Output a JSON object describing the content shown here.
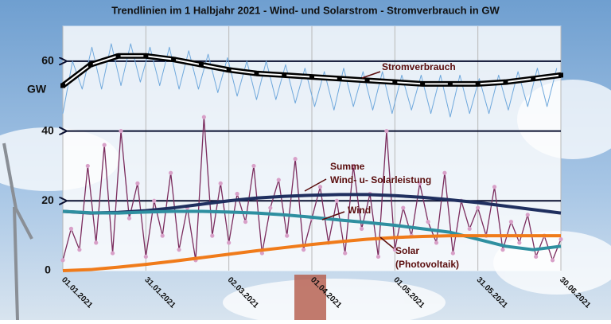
{
  "chart_data": {
    "type": "line",
    "title": "Trendlinien im 1 Halbjahr 2021 - Wind- und Solarstrom - Stromverbrauch in GW",
    "y_label": "GW",
    "xlim": [
      0,
      180
    ],
    "xticks": [
      {
        "value": 0,
        "label": "01.01.2021"
      },
      {
        "value": 30,
        "label": "31.01.2021"
      },
      {
        "value": 60,
        "label": "02.03.2021"
      },
      {
        "value": 90,
        "label": "01.04.2021"
      },
      {
        "value": 120,
        "label": "01.05.2021"
      },
      {
        "value": 150,
        "label": "31.05.2021"
      },
      {
        "value": 180,
        "label": "30.06.2021"
      }
    ],
    "ylim": [
      0,
      70
    ],
    "yticks": [
      0,
      20,
      40,
      60
    ],
    "grid": true,
    "annotations": [
      "Stromverbrauch",
      "Summe",
      "Wind- u- Solarleistung",
      "Wind",
      "Solar",
      "(Photovoltaik)"
    ],
    "series": [
      {
        "color": "#6fa8dc",
        "width": 1,
        "x": [
          0,
          3.5,
          7,
          10.5,
          14,
          17.5,
          21,
          24.5,
          28,
          31.5,
          35,
          38.5,
          42,
          45.5,
          49,
          52.5,
          56,
          59.5,
          63,
          66.5,
          70,
          73.5,
          77,
          80.5,
          84,
          87.5,
          91,
          94.5,
          98,
          101.5,
          105,
          108.5,
          112,
          115.5,
          119,
          122.5,
          126,
          129.5,
          133,
          136.5,
          140,
          143.5,
          147,
          150.5,
          154,
          157.5,
          161,
          164.5,
          168,
          171.5,
          175,
          178.5
        ],
        "values": [
          45,
          60,
          52,
          64,
          52,
          65,
          53,
          65,
          54,
          64,
          53,
          64,
          52,
          63,
          52,
          62,
          51,
          61,
          50,
          60,
          49,
          60,
          49,
          59,
          48,
          58,
          47,
          57,
          46,
          58,
          47,
          57,
          46,
          57,
          45,
          56,
          46,
          56,
          45,
          56,
          44,
          56,
          45,
          55,
          45,
          56,
          46,
          57,
          47,
          58,
          47,
          58
        ]
      },
      {
        "color": "#7b2c5e",
        "width": 1.3,
        "dots": "#d8a0c8",
        "x": [
          0,
          3,
          6,
          9,
          12,
          15,
          18,
          21,
          24,
          27,
          30,
          33,
          36,
          39,
          42,
          45,
          48,
          51,
          54,
          57,
          60,
          63,
          66,
          69,
          72,
          75,
          78,
          81,
          84,
          87,
          90,
          93,
          96,
          99,
          102,
          105,
          108,
          111,
          114,
          117,
          120,
          123,
          126,
          129,
          132,
          135,
          138,
          141,
          144,
          147,
          150,
          153,
          156,
          159,
          162,
          165,
          168,
          171,
          174,
          177,
          180
        ],
        "values": [
          3,
          12,
          6,
          30,
          8,
          36,
          5,
          40,
          15,
          25,
          4,
          20,
          10,
          28,
          6,
          18,
          3,
          44,
          10,
          25,
          8,
          22,
          14,
          30,
          5,
          18,
          26,
          10,
          32,
          6,
          15,
          24,
          8,
          20,
          5,
          30,
          12,
          22,
          4,
          40,
          6,
          18,
          10,
          25,
          14,
          8,
          28,
          5,
          20,
          12,
          18,
          10,
          24,
          6,
          14,
          8,
          16,
          4,
          10,
          3,
          9
        ]
      },
      {
        "color": "#000000",
        "width": 7,
        "core": "#ffffff",
        "markers": true,
        "x": [
          0,
          10,
          20,
          30,
          40,
          50,
          60,
          70,
          80,
          90,
          100,
          110,
          120,
          130,
          140,
          150,
          160,
          170,
          180
        ],
        "values": [
          53,
          59,
          61.5,
          61.5,
          60.5,
          59,
          57.5,
          56.5,
          56,
          55.5,
          55,
          54.5,
          54,
          53.5,
          53.5,
          53.5,
          54,
          55,
          56
        ]
      },
      {
        "color": "#1f2f5f",
        "width": 4,
        "x": [
          0,
          10,
          20,
          30,
          40,
          50,
          60,
          70,
          80,
          90,
          100,
          110,
          120,
          130,
          140,
          150,
          160,
          170,
          180
        ],
        "values": [
          17,
          16.5,
          16.7,
          17.2,
          18,
          19,
          20,
          20.8,
          21.3,
          21.6,
          21.8,
          21.8,
          21.5,
          21,
          20.3,
          19.5,
          18.5,
          17.5,
          16.5
        ]
      },
      {
        "color": "#2e8fa0",
        "width": 4,
        "x": [
          0,
          10,
          20,
          30,
          40,
          50,
          60,
          70,
          80,
          90,
          100,
          110,
          120,
          130,
          140,
          150,
          160,
          170,
          180
        ],
        "values": [
          17,
          16.6,
          16.5,
          16.8,
          17,
          17,
          16.8,
          16.5,
          16,
          15.3,
          14.5,
          13.8,
          13,
          12,
          11,
          9,
          7,
          6,
          7
        ]
      },
      {
        "color": "#f07b1a",
        "width": 4,
        "x": [
          0,
          10,
          20,
          30,
          40,
          50,
          60,
          70,
          80,
          90,
          100,
          110,
          120,
          130,
          140,
          150,
          160,
          170,
          180
        ],
        "values": [
          0,
          0.3,
          1,
          1.8,
          2.7,
          3.7,
          4.7,
          5.7,
          6.6,
          7.5,
          8.3,
          9,
          9.5,
          9.8,
          10,
          10,
          10,
          10,
          10
        ]
      }
    ]
  }
}
